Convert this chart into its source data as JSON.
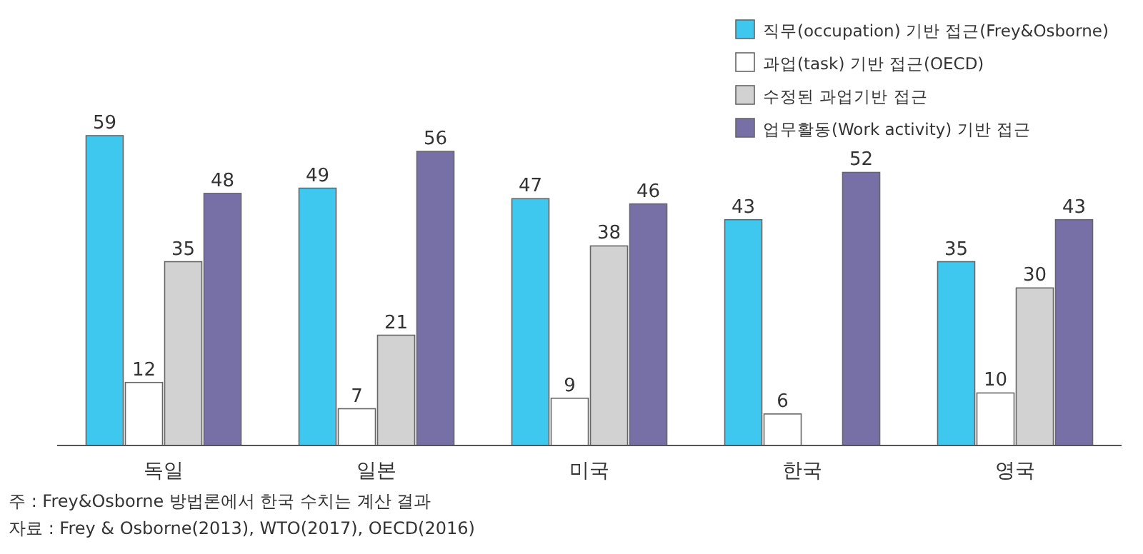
{
  "chart_data": {
    "type": "bar",
    "categories": [
      "독일",
      "일본",
      "미국",
      "한국",
      "영국"
    ],
    "series": [
      {
        "name": "직무(occupation) 기반 접근(Frey&Osborne)",
        "color": "#3ec8f0",
        "values": [
          59,
          49,
          47,
          43,
          35
        ]
      },
      {
        "name": "과업(task) 기반 접근(OECD)",
        "color": "#ffffff",
        "values": [
          12,
          7,
          9,
          6,
          10
        ]
      },
      {
        "name": "수정된 과업기반 접근",
        "color": "#d2d2d2",
        "values": [
          35,
          21,
          38,
          null,
          30
        ]
      },
      {
        "name": "업무활동(Work activity) 기반 접근",
        "color": "#7670a6",
        "values": [
          48,
          56,
          46,
          52,
          43
        ]
      }
    ],
    "data_labels": true,
    "legend": "top right",
    "annotations": [
      "주 : Frey&Osborne 방법론에서 한국 수치는 계산 결과",
      "자료 : Frey & Osborne(2013), WTO(2017), OECD(2016)"
    ]
  }
}
